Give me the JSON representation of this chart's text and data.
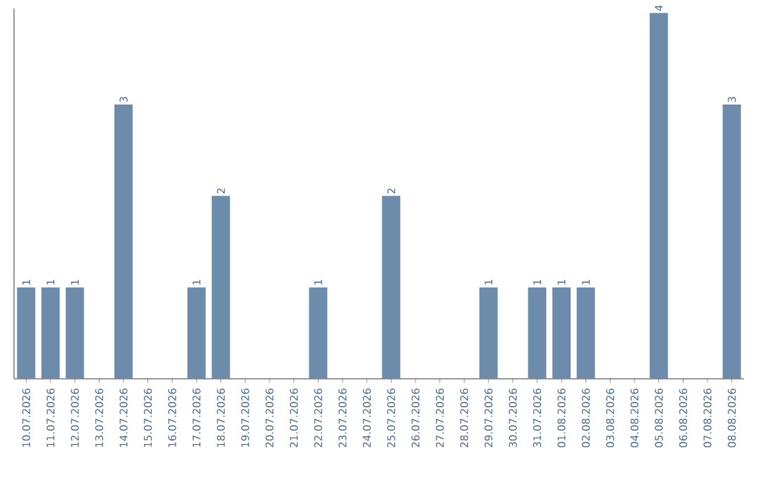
{
  "chart_data": {
    "type": "bar",
    "color": "#6d8cab",
    "categories": [
      "10.07.2026",
      "11.07.2026",
      "12.07.2026",
      "13.07.2026",
      "14.07.2026",
      "15.07.2026",
      "16.07.2026",
      "17.07.2026",
      "18.07.2026",
      "19.07.2026",
      "20.07.2026",
      "21.07.2026",
      "22.07.2026",
      "23.07.2026",
      "24.07.2026",
      "25.07.2026",
      "26.07.2026",
      "27.07.2026",
      "28.07.2026",
      "29.07.2026",
      "30.07.2026",
      "31.07.2026",
      "01.08.2026",
      "02.08.2026",
      "03.08.2026",
      "04.08.2026",
      "05.08.2026",
      "06.08.2026",
      "07.08.2026",
      "08.08.2026"
    ],
    "values": [
      1,
      1,
      1,
      0,
      3,
      0,
      0,
      1,
      2,
      0,
      0,
      0,
      1,
      0,
      0,
      2,
      0,
      0,
      0,
      1,
      0,
      1,
      1,
      1,
      0,
      0,
      4,
      0,
      0,
      3
    ],
    "value_labels": [
      "1",
      "1",
      "1",
      null,
      "3",
      null,
      null,
      "1",
      "2",
      null,
      null,
      null,
      "1",
      null,
      null,
      "2",
      null,
      null,
      null,
      "1",
      null,
      "1",
      "1",
      "1",
      null,
      null,
      "4",
      null,
      null,
      "3"
    ],
    "ylim": [
      0,
      4.05
    ]
  }
}
